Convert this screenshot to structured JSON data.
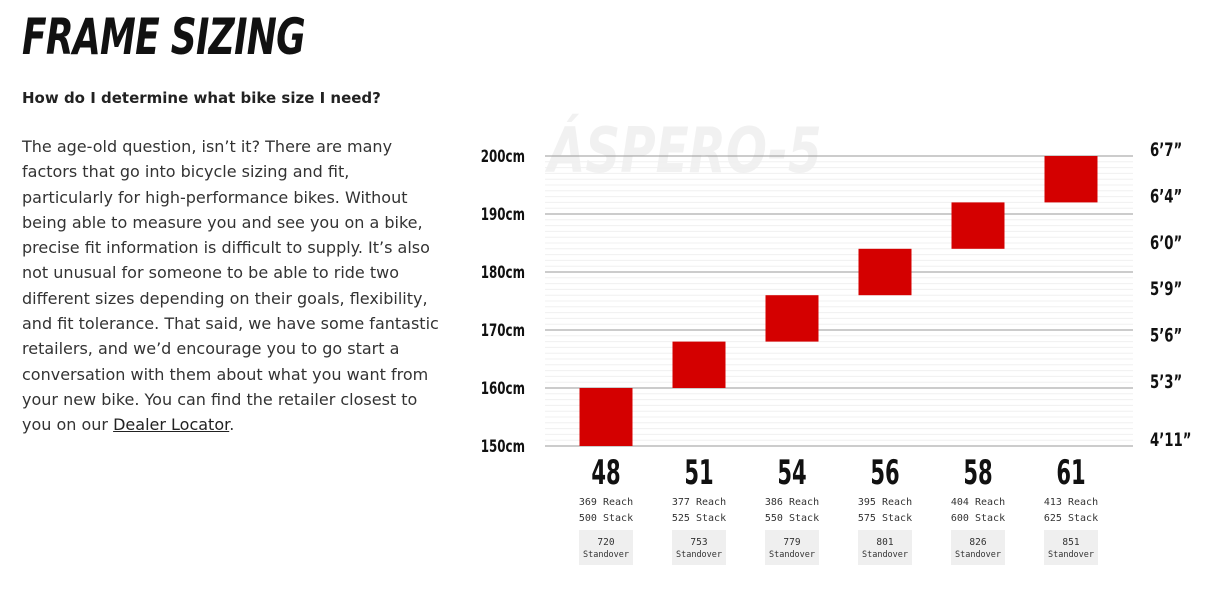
{
  "header": {
    "title": "FRAME SIZING"
  },
  "question": "How do I determine what bike size I need?",
  "paragraph": {
    "text": "The age-old question, isn’t it? There are many factors that go into bicycle sizing and fit, particularly for high-performance bikes. Without being able to measure you and see you on a bike, precise fit information is difficult to supply. It’s also not unusual for someone to be able to ride two different sizes depending on their goals, flexibility, and fit tolerance. That said, we have some fantastic retailers, and we’d encourage you to go start a conversation with them about what you want from your new bike. You can find the retailer closest to you on our ",
    "link": "Dealer Locator",
    "end": "."
  },
  "chart_data": {
    "type": "floating_bar",
    "watermark": "ÁSPERO-5",
    "categories": [
      "48",
      "51",
      "54",
      "56",
      "58",
      "61"
    ],
    "low": [
      150,
      160,
      168,
      176,
      184,
      192
    ],
    "high": [
      160,
      168,
      176,
      184,
      192,
      200
    ],
    "color": "#d40000",
    "ylim": [
      150,
      200
    ],
    "yticks": [
      {
        "value": 150,
        "label": "150cm"
      },
      {
        "value": 160,
        "label": "160cm"
      },
      {
        "value": 170,
        "label": "170cm"
      },
      {
        "value": 180,
        "label": "180cm"
      },
      {
        "value": 190,
        "label": "190cm"
      },
      {
        "value": 200,
        "label": "200cm"
      }
    ],
    "y2lim": [
      150,
      200
    ],
    "y2ticks": [
      {
        "value": 150,
        "label": "4’11”"
      },
      {
        "value": 160,
        "label": "5’3”"
      },
      {
        "value": 168,
        "label": "5’6”"
      },
      {
        "value": 176,
        "label": "5’9”"
      },
      {
        "value": 184,
        "label": "6’0”"
      },
      {
        "value": 192,
        "label": "6’4”"
      },
      {
        "value": 200,
        "label": "6’7”"
      }
    ],
    "grid": true,
    "reach": [
      369,
      377,
      386,
      395,
      404,
      413
    ],
    "reach_label": "Reach",
    "stack": [
      500,
      525,
      550,
      575,
      600,
      625
    ],
    "stack_label": "Stack",
    "standover": [
      720,
      753,
      779,
      801,
      826,
      851
    ],
    "standover_label": "Standover"
  }
}
